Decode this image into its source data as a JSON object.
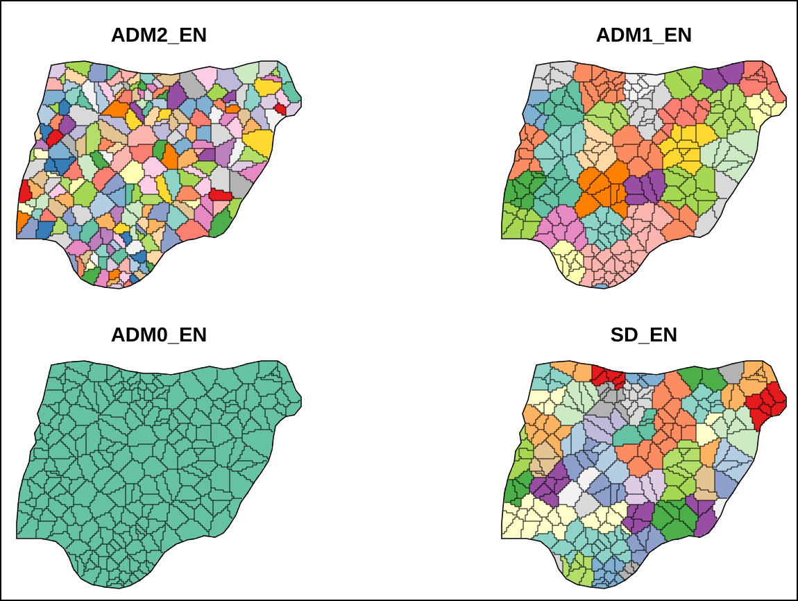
{
  "panels": [
    {
      "title": "ADM2_EN",
      "fill": "set2-mixed"
    },
    {
      "title": "ADM1_EN",
      "fill": "set2-mixed"
    },
    {
      "title": "ADM0_EN",
      "fill": "#66c2a5"
    },
    {
      "title": "SD_EN",
      "fill": "set2-mixed"
    }
  ],
  "colors": {
    "palette": [
      "#8da0cb",
      "#e78ac3",
      "#a6d854",
      "#ffd92f",
      "#e5c494",
      "#b3b3b3",
      "#66c2a5",
      "#fc8d62",
      "#b3cde3",
      "#fbb4ae",
      "#ccebc5",
      "#decbe4",
      "#fed9a6",
      "#ffffcc",
      "#f2f2f2",
      "#80b1d3",
      "#bebada",
      "#fb8072",
      "#fdb462",
      "#b3de69",
      "#fccde5",
      "#d9d9d9",
      "#bc80bd",
      "#8dd3c7",
      "#ffffb3",
      "#984ea3",
      "#ff7f00",
      "#4daf4a",
      "#e41a1c",
      "#377eb8"
    ],
    "outline": "#000000",
    "country_single": "#66c2a5"
  }
}
